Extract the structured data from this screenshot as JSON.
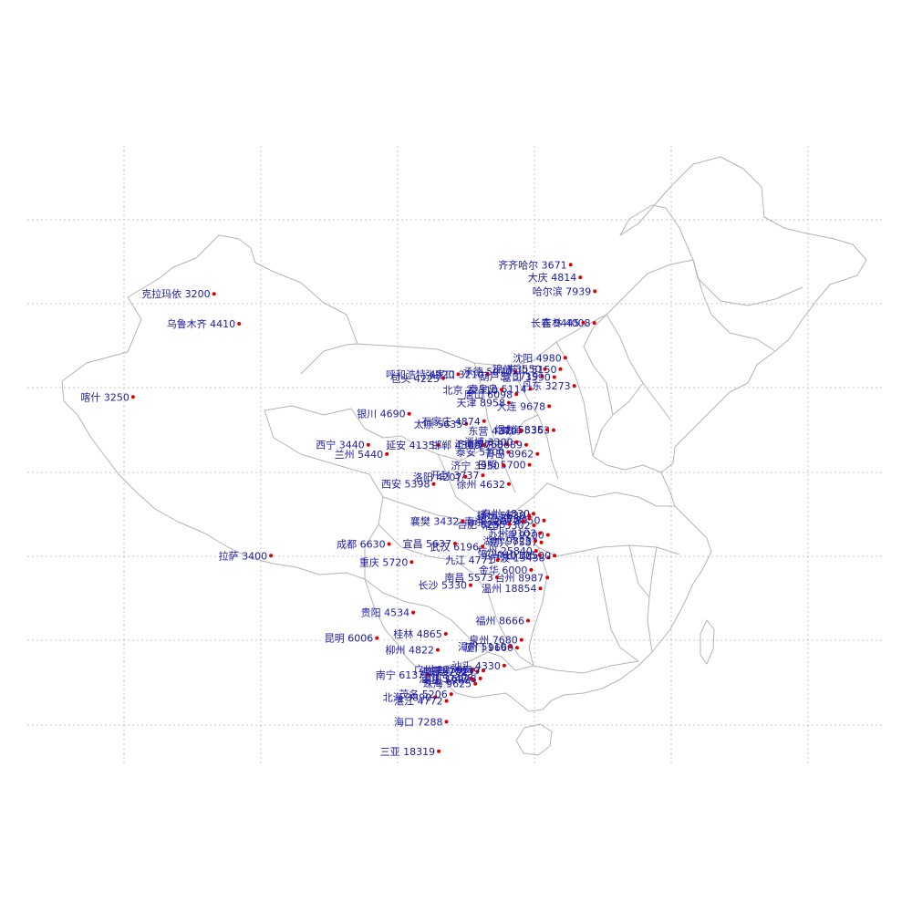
{
  "colors": {
    "label": "#1a1aa6",
    "dot": "#e00000",
    "boundary": "#b4b4b4",
    "grid": "#c8c8c8"
  },
  "cities": [
    {
      "name": "克拉玛依",
      "value": "3200",
      "lon": 84.87,
      "lat": 45.6
    },
    {
      "name": "乌鲁木齐",
      "value": "4410",
      "lon": 87.62,
      "lat": 43.82
    },
    {
      "name": "喀什",
      "value": "3250",
      "lon": 75.99,
      "lat": 39.47
    },
    {
      "name": "拉萨",
      "value": "3400",
      "lon": 91.11,
      "lat": 29.97
    },
    {
      "name": "西宁",
      "value": "3440",
      "lon": 101.78,
      "lat": 36.62
    },
    {
      "name": "兰州",
      "value": "5440",
      "lon": 103.82,
      "lat": 36.06
    },
    {
      "name": "银川",
      "value": "4690",
      "lon": 106.27,
      "lat": 38.47
    },
    {
      "name": "成都",
      "value": "6630",
      "lon": 104.06,
      "lat": 30.67
    },
    {
      "name": "重庆",
      "value": "5720",
      "lon": 106.54,
      "lat": 29.59
    },
    {
      "name": "贵阳",
      "value": "4534",
      "lon": 106.71,
      "lat": 26.57
    },
    {
      "name": "昆明",
      "value": "6006",
      "lon": 102.73,
      "lat": 25.04
    },
    {
      "name": "南宁",
      "value": "6137",
      "lon": 108.33,
      "lat": 22.84
    },
    {
      "name": "北海",
      "value": "3890",
      "lon": 109.12,
      "lat": 21.49
    },
    {
      "name": "柳州",
      "value": "4822",
      "lon": 109.4,
      "lat": 24.33
    },
    {
      "name": "桂林",
      "value": "4865",
      "lon": 110.28,
      "lat": 25.29
    },
    {
      "name": "三亚",
      "value": "18319",
      "lon": 109.51,
      "lat": 18.25
    },
    {
      "name": "海口",
      "value": "7288",
      "lon": 110.35,
      "lat": 20.02
    },
    {
      "name": "湛江",
      "value": "4772",
      "lon": 110.36,
      "lat": 21.27
    },
    {
      "name": "茂名",
      "value": "5206",
      "lon": 110.88,
      "lat": 21.68
    },
    {
      "name": "江门",
      "value": "5747",
      "lon": 113.06,
      "lat": 22.61
    },
    {
      "name": "广州",
      "value": "12500",
      "lon": 113.23,
      "lat": 23.16
    },
    {
      "name": "佛山",
      "value": "6752",
      "lon": 113.11,
      "lat": 23.05
    },
    {
      "name": "东莞",
      "value": "7023",
      "lon": 113.75,
      "lat": 23.04
    },
    {
      "name": "惠州",
      "value": "7649",
      "lon": 114.4,
      "lat": 23.09
    },
    {
      "name": "珠海",
      "value": "9625",
      "lon": 113.52,
      "lat": 22.3
    },
    {
      "name": "中山",
      "value": "5988",
      "lon": 113.38,
      "lat": 22.52
    },
    {
      "name": "深圳",
      "value": "16978",
      "lon": 114.07,
      "lat": 22.62
    },
    {
      "name": "汕头",
      "value": "4330",
      "lon": 116.69,
      "lat": 23.39
    },
    {
      "name": "漳州",
      "value": "5110",
      "lon": 117.35,
      "lat": 24.52
    },
    {
      "name": "厦门",
      "value": "9660",
      "lon": 118.1,
      "lat": 24.46
    },
    {
      "name": "泉州",
      "value": "7680",
      "lon": 118.58,
      "lat": 24.93
    },
    {
      "name": "福州",
      "value": "8666",
      "lon": 119.3,
      "lat": 26.08
    },
    {
      "name": "温州",
      "value": "18854",
      "lon": 120.65,
      "lat": 28.01
    },
    {
      "name": "台州",
      "value": "8987",
      "lon": 121.42,
      "lat": 28.66
    },
    {
      "name": "宁波",
      "value": "13438",
      "lon": 121.56,
      "lat": 29.86
    },
    {
      "name": "舟山",
      "value": "10500",
      "lon": 122.21,
      "lat": 29.98
    },
    {
      "name": "绍兴",
      "value": "10105",
      "lon": 120.58,
      "lat": 30.01
    },
    {
      "name": "金华",
      "value": "6000",
      "lon": 119.64,
      "lat": 29.12
    },
    {
      "name": "嘉兴",
      "value": "7587",
      "lon": 120.76,
      "lat": 30.77
    },
    {
      "name": "湖州",
      "value": "9823",
      "lon": 120.1,
      "lat": 30.86
    },
    {
      "name": "杭州",
      "value": "25840",
      "lon": 120.19,
      "lat": 30.26
    },
    {
      "name": "上海",
      "value": "9200",
      "lon": 121.48,
      "lat": 31.22
    },
    {
      "name": "苏州",
      "value": "9103",
      "lon": 120.62,
      "lat": 31.32
    },
    {
      "name": "南通",
      "value": "8950",
      "lon": 121.05,
      "lat": 32.08
    },
    {
      "name": "泰州",
      "value": "4830",
      "lon": 119.9,
      "lat": 32.49
    },
    {
      "name": "扬州",
      "value": "5630",
      "lon": 119.42,
      "lat": 32.39
    },
    {
      "name": "镇江",
      "value": "5050",
      "lon": 119.44,
      "lat": 32.2
    },
    {
      "name": "南京",
      "value": "12010",
      "lon": 118.78,
      "lat": 32.04
    },
    {
      "name": "常州",
      "value": "5302",
      "lon": 119.95,
      "lat": 31.79
    },
    {
      "name": "合肥",
      "value": "6255",
      "lon": 117.27,
      "lat": 31.86
    },
    {
      "name": "武汉",
      "value": "6196",
      "lon": 114.31,
      "lat": 30.52
    },
    {
      "name": "九江",
      "value": "4771",
      "lon": 115.97,
      "lat": 29.71
    },
    {
      "name": "南昌",
      "value": "5573",
      "lon": 115.89,
      "lat": 28.68
    },
    {
      "name": "长沙",
      "value": "5330",
      "lon": 113.0,
      "lat": 28.21
    },
    {
      "name": "宜昌",
      "value": "5637",
      "lon": 111.3,
      "lat": 30.7
    },
    {
      "name": "襄樊",
      "value": "3432",
      "lon": 112.14,
      "lat": 32.04
    },
    {
      "name": "西安",
      "value": "5398",
      "lon": 108.95,
      "lat": 34.27
    },
    {
      "name": "延安",
      "value": "4135",
      "lon": 109.47,
      "lat": 36.6
    },
    {
      "name": "洛阳",
      "value": "4207",
      "lon": 112.44,
      "lat": 34.7
    },
    {
      "name": "开封",
      "value": "3737",
      "lon": 114.35,
      "lat": 34.79
    },
    {
      "name": "徐州",
      "value": "4632",
      "lon": 117.2,
      "lat": 34.26
    },
    {
      "name": "日照",
      "value": "5700",
      "lon": 119.46,
      "lat": 35.42
    },
    {
      "name": "泰安",
      "value": "5100",
      "lon": 117.13,
      "lat": 36.18
    },
    {
      "name": "济宁",
      "value": "3950",
      "lon": 116.59,
      "lat": 35.38
    },
    {
      "name": "邯郸",
      "value": "4300",
      "lon": 114.47,
      "lat": 36.6
    },
    {
      "name": "济南",
      "value": "7760",
      "lon": 117.0,
      "lat": 36.65
    },
    {
      "name": "潍坊",
      "value": "3689",
      "lon": 119.1,
      "lat": 36.62
    },
    {
      "name": "青岛",
      "value": "8962",
      "lon": 120.33,
      "lat": 36.07
    },
    {
      "name": "淄博",
      "value": "3300",
      "lon": 118.05,
      "lat": 36.78
    },
    {
      "name": "威海",
      "value": "5363",
      "lon": 122.1,
      "lat": 37.5
    },
    {
      "name": "烟台",
      "value": "5835",
      "lon": 121.39,
      "lat": 37.52
    },
    {
      "name": "东营",
      "value": "4370",
      "lon": 118.49,
      "lat": 37.46
    },
    {
      "name": "太原",
      "value": "5635",
      "lon": 112.53,
      "lat": 37.87
    },
    {
      "name": "石家庄",
      "value": "4874",
      "lon": 114.48,
      "lat": 38.03
    },
    {
      "name": "天津",
      "value": "8958",
      "lon": 117.2,
      "lat": 39.13
    },
    {
      "name": "唐山",
      "value": "6098",
      "lon": 118.02,
      "lat": 39.63
    },
    {
      "name": "秦皇岛",
      "value": "5114",
      "lon": 119.57,
      "lat": 39.95
    },
    {
      "name": "北京",
      "value": "22310",
      "lon": 116.4,
      "lat": 39.9
    },
    {
      "name": "承德",
      "value": "5070",
      "lon": 117.93,
      "lat": 40.97
    },
    {
      "name": "张家口",
      "value": "3210",
      "lon": 114.87,
      "lat": 40.82
    },
    {
      "name": "包头",
      "value": "4225",
      "lon": 110.0,
      "lat": 40.58
    },
    {
      "name": "呼和浩特",
      "value": "4920",
      "lon": 111.65,
      "lat": 40.82
    },
    {
      "name": "锦州",
      "value": "3550",
      "lon": 121.15,
      "lat": 41.13
    },
    {
      "name": "葫芦岛",
      "value": "3719",
      "lon": 120.83,
      "lat": 40.71
    },
    {
      "name": "营口",
      "value": "3590",
      "lon": 122.18,
      "lat": 40.65
    },
    {
      "name": "大连",
      "value": "9678",
      "lon": 121.62,
      "lat": 38.92
    },
    {
      "name": "丹东",
      "value": "3273",
      "lon": 124.37,
      "lat": 40.13
    },
    {
      "name": "鞍山",
      "value": "5150",
      "lon": 122.85,
      "lat": 41.12
    },
    {
      "name": "沈阳",
      "value": "4980",
      "lon": 123.38,
      "lat": 41.8
    },
    {
      "name": "吉林",
      "value": "4008",
      "lon": 126.57,
      "lat": 43.87
    },
    {
      "name": "长春",
      "value": "5445",
      "lon": 125.35,
      "lat": 43.88
    },
    {
      "name": "哈尔滨",
      "value": "7939",
      "lon": 126.63,
      "lat": 45.75
    },
    {
      "name": "大庆",
      "value": "4814",
      "lon": 125.03,
      "lat": 46.58
    },
    {
      "name": "齐齐哈尔",
      "value": "3671",
      "lon": 123.97,
      "lat": 47.33
    }
  ]
}
